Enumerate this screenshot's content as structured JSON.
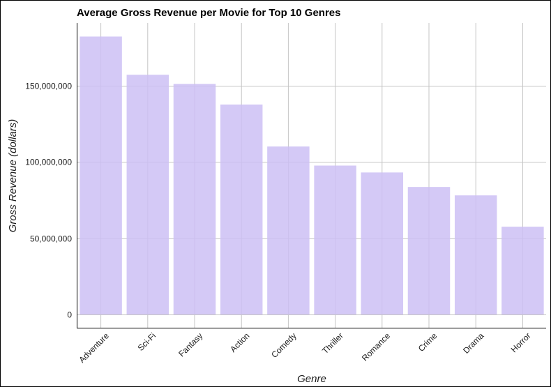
{
  "chart_data": {
    "type": "bar",
    "title": "Average Gross Revenue per Movie for Top 10 Genres",
    "xlabel": "Genre",
    "ylabel": "Gross Revenue (dollars)",
    "categories": [
      "Adventure",
      "Sci-Fi",
      "Fantasy",
      "Action",
      "Comedy",
      "Thriller",
      "Romance",
      "Crime",
      "Drama",
      "Horror"
    ],
    "values": [
      182000000,
      157000000,
      151000000,
      137500000,
      110000000,
      97500000,
      93000000,
      83500000,
      78000000,
      57500000
    ],
    "ylim": [
      0,
      190000000
    ],
    "yticks": [
      0,
      50000000,
      100000000,
      150000000
    ],
    "ytick_labels": [
      "0",
      "50,000,000",
      "100,000,000",
      "150,000,000"
    ],
    "grid": true,
    "bar_color": "#cdbff5",
    "grid_color": "#c4c4c4",
    "xtick_rotation": -45
  }
}
